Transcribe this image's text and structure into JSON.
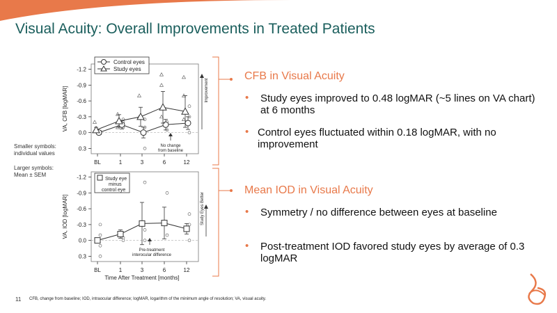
{
  "slide": {
    "title": "Visual Acuity: Overall Improvements in Treated Patients",
    "page_number": "11",
    "footnote": "CFB, change from baseline; IOD, intraocular difference; logMAR, logarithm of the minimum angle of resolution; VA, visual acuity.",
    "symbol_note": {
      "line1": "Smaller symbols:",
      "line2": "individual values",
      "line3": "Larger symbols:",
      "line4": "Mean ± SEM"
    },
    "accent_color": "#e8794a",
    "title_color": "#1a5e5c"
  },
  "sections": [
    {
      "heading": "CFB in Visual Acuity",
      "bullets": [
        "Study eyes improved to 0.48 logMAR (~5 lines on VA chart) at 6 months",
        "Control eyes fluctuated within 0.18 logMAR, with no improvement"
      ]
    },
    {
      "heading": "Mean IOD in Visual Acuity",
      "bullets": [
        "Symmetry / no difference between eyes at baseline",
        "Post-treatment IOD favored study eyes by average of 0.3 logMAR"
      ]
    }
  ],
  "chart_data": [
    {
      "type": "line",
      "ylabel": "VA, CFB [logMAR]",
      "categories": [
        "BL",
        "1",
        "3",
        "6",
        "12"
      ],
      "x": [
        0,
        1,
        3,
        6,
        12
      ],
      "yticks": [
        "-1.2",
        "-0.9",
        "-0.6",
        "-0.3",
        "0.0",
        "0.3"
      ],
      "ytick_values": [
        -1.2,
        -0.9,
        -0.6,
        -0.3,
        0.0,
        0.3
      ],
      "ylim": [
        0.4,
        -1.3
      ],
      "annotation": "No change from baseline",
      "annotation_line1": "No change",
      "annotation_line2": "from baseline",
      "arrow_label": "Improvement",
      "legend": [
        "Control eyes",
        "Study eyes"
      ],
      "series": [
        {
          "name": "Control eyes",
          "marker": "circle",
          "values": [
            0.0,
            -0.15,
            0.0,
            -0.15,
            -0.18
          ],
          "sem": [
            0.03,
            0.08,
            0.1,
            0.1,
            0.12
          ]
        },
        {
          "name": "Study eyes",
          "marker": "triangle",
          "values": [
            -0.05,
            -0.22,
            -0.3,
            -0.48,
            -0.4
          ],
          "sem": [
            0.05,
            0.12,
            0.18,
            0.3,
            0.3
          ]
        }
      ],
      "individual_points": {
        "circles": [
          [
            0,
            0.0
          ],
          [
            0,
            0.02
          ],
          [
            0,
            -0.02
          ],
          [
            1,
            -0.1
          ],
          [
            1,
            -0.2
          ],
          [
            1,
            -0.25
          ],
          [
            3,
            -0.25
          ],
          [
            3,
            -0.1
          ],
          [
            3,
            0.3
          ],
          [
            6,
            -0.05
          ],
          [
            6,
            -0.2
          ],
          [
            12,
            -0.5
          ],
          [
            12,
            -0.3
          ],
          [
            12,
            0.0
          ]
        ],
        "triangles": [
          [
            0,
            -0.2
          ],
          [
            1,
            -0.35
          ],
          [
            1,
            -0.1
          ],
          [
            3,
            -0.7
          ],
          [
            3,
            -0.3
          ],
          [
            6,
            -1.1
          ],
          [
            6,
            -0.9
          ],
          [
            6,
            -0.3
          ],
          [
            12,
            -1.05
          ],
          [
            12,
            -0.7
          ],
          [
            12,
            -0.25
          ]
        ]
      }
    },
    {
      "type": "line",
      "ylabel": "VA, IOD [logMAR]",
      "xlabel": "Time After Treatment [months]",
      "categories": [
        "BL",
        "1",
        "3",
        "6",
        "12"
      ],
      "x": [
        0,
        1,
        3,
        6,
        12
      ],
      "yticks": [
        "-1.2",
        "-0.9",
        "-0.6",
        "-0.3",
        "0.0",
        "0.3"
      ],
      "ytick_values": [
        -1.2,
        -0.9,
        -0.6,
        -0.3,
        0.0,
        0.3
      ],
      "ylim": [
        0.4,
        -1.3
      ],
      "annotation": "Pre-treatment interocular difference",
      "annotation_line1": "Pre-treatment",
      "annotation_line2": "interocular difference",
      "arrow_label": "Study Eyes Better",
      "legend_line1": "Study eye",
      "legend_line2": "minus",
      "legend_line3": "control eye",
      "series": [
        {
          "name": "Study eye minus control eye",
          "marker": "square",
          "values": [
            0.0,
            -0.12,
            -0.32,
            -0.33,
            -0.22
          ],
          "sem": [
            0.03,
            0.08,
            0.4,
            0.3,
            0.1
          ]
        }
      ],
      "individual_points": {
        "circles": [
          [
            0,
            -0.3
          ],
          [
            0,
            -0.1
          ],
          [
            0,
            0.1
          ],
          [
            0,
            0.3
          ],
          [
            1,
            -0.05
          ],
          [
            1,
            0.0
          ],
          [
            3,
            -1.1
          ],
          [
            3,
            -0.2
          ],
          [
            3,
            0.0
          ],
          [
            6,
            -0.9
          ],
          [
            6,
            -0.1
          ],
          [
            12,
            -0.5
          ],
          [
            12,
            -0.3
          ],
          [
            12,
            0.0
          ]
        ]
      }
    }
  ]
}
